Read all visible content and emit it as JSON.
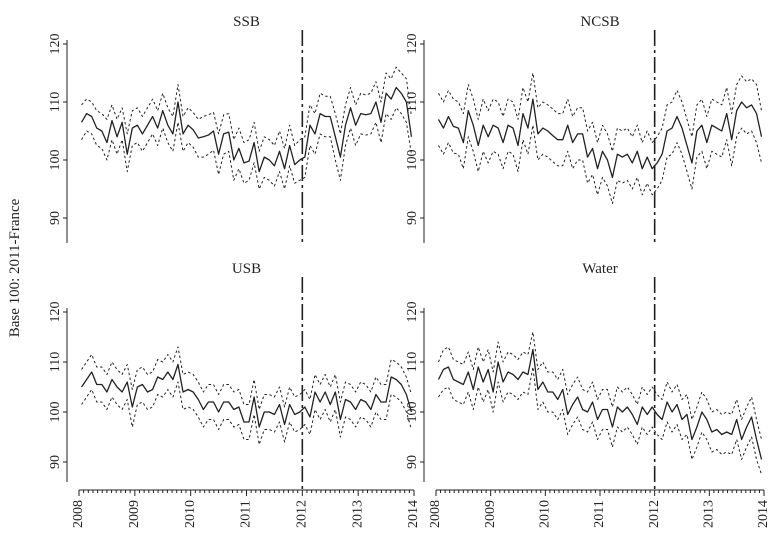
{
  "ylabel": "Base 100: 2011-France",
  "chart_data": [
    {
      "type": "line",
      "title": "SSB",
      "x_ticks": [
        "2008",
        "2009",
        "2010",
        "2011",
        "2012",
        "2013",
        "2014"
      ],
      "y_ticks": [
        90,
        100,
        110,
        120
      ],
      "ylim": [
        84,
        122
      ],
      "xlim": [
        2008,
        2014
      ],
      "vline": 2012,
      "series": [
        {
          "style": "solid",
          "values": [
            106.5,
            108,
            107.5,
            105.5,
            105,
            103,
            106.8,
            104,
            106.5,
            101,
            105.5,
            106,
            104.5,
            106,
            107.5,
            105.5,
            108.5,
            106,
            104.5,
            110,
            104.5,
            106,
            105.2,
            103.8,
            104,
            104.3,
            105,
            101,
            104.5,
            104.8,
            100,
            102,
            99.5,
            99.8,
            103,
            98,
            100.5,
            100,
            99,
            101.5,
            98.5,
            102.5,
            99.2,
            100,
            100.5,
            106,
            104.5,
            108,
            107.5,
            107.5,
            104,
            100.5,
            106,
            109,
            106,
            108,
            107.8,
            108,
            110,
            106.5,
            111.5,
            110.5,
            112.5,
            111.5,
            110,
            104
          ]
        },
        {
          "style": "dash",
          "values": [
            109.5,
            110.5,
            110,
            108.5,
            108,
            107,
            109.5,
            107,
            109,
            104.5,
            108.5,
            109,
            107.5,
            109,
            110.5,
            108.5,
            111.5,
            109,
            107.5,
            113,
            107.5,
            109,
            108.2,
            107,
            107.5,
            107.8,
            108.2,
            104.5,
            107.8,
            108,
            103.5,
            105.5,
            103,
            103.5,
            106.5,
            101.5,
            104,
            103.5,
            102.5,
            105,
            102,
            106,
            102.5,
            103.5,
            104,
            109.5,
            108,
            111.5,
            111,
            111,
            108,
            104.5,
            109.5,
            112.5,
            109.5,
            111.5,
            111.2,
            111.5,
            113.5,
            110,
            115,
            114,
            116,
            115,
            114,
            107.5
          ]
        },
        {
          "style": "dash",
          "values": [
            103.5,
            105,
            104.5,
            102.5,
            102,
            100,
            103.5,
            101,
            103.5,
            98,
            102.5,
            103,
            101.5,
            103,
            104.5,
            102.5,
            105.5,
            103,
            101.5,
            106.5,
            101.5,
            103,
            102.2,
            100.5,
            100.5,
            101,
            101.7,
            97.5,
            101,
            101.5,
            96.5,
            98.5,
            96,
            96.5,
            99.5,
            95,
            97,
            96.5,
            95.5,
            98,
            95,
            99,
            96,
            96.5,
            97,
            102.5,
            101,
            104.5,
            104,
            104,
            100,
            96.5,
            102.5,
            105.5,
            102.5,
            104.5,
            104.3,
            104.5,
            106.5,
            103,
            108,
            107,
            109,
            108,
            106.5,
            101
          ]
        }
      ]
    },
    {
      "type": "line",
      "title": "NCSB",
      "x_ticks": [
        "2008",
        "2009",
        "2010",
        "2011",
        "2012",
        "2013",
        "2014"
      ],
      "y_ticks": [
        90,
        100,
        110,
        120
      ],
      "ylim": [
        84,
        122
      ],
      "xlim": [
        2008,
        2014
      ],
      "vline": 2012,
      "series": [
        {
          "style": "solid",
          "values": [
            107,
            105.5,
            107.5,
            105.8,
            105.5,
            103,
            108.5,
            106,
            102.5,
            106,
            104,
            106,
            105.5,
            103,
            106,
            105.5,
            102.5,
            108,
            105.5,
            110.5,
            104.5,
            105.5,
            105,
            104.2,
            103.5,
            103.5,
            106,
            103,
            104.5,
            104.5,
            100.5,
            102,
            98.5,
            101.5,
            100,
            97,
            101,
            100.5,
            101,
            99.5,
            101.5,
            98.5,
            100.5,
            98.5,
            99.5,
            101,
            105,
            105.5,
            107.5,
            105.5,
            102.5,
            99.5,
            105,
            106,
            103,
            106,
            105.5,
            105,
            108,
            103.5,
            108.5,
            110,
            109,
            109.5,
            108,
            104
          ]
        },
        {
          "style": "dash",
          "values": [
            111.5,
            110,
            112,
            110.5,
            110,
            108,
            113,
            110.5,
            107,
            110.5,
            108.5,
            110.5,
            110,
            107.5,
            110.5,
            110,
            107,
            112.5,
            110,
            115,
            109,
            110,
            109.5,
            108.8,
            108,
            108,
            110.5,
            107.5,
            109,
            109,
            105,
            106.5,
            103,
            106,
            104.5,
            101.5,
            105.5,
            105,
            105.5,
            104,
            106,
            103,
            105,
            103,
            104,
            105.5,
            109.5,
            110,
            112,
            110,
            107,
            104,
            109.5,
            110.5,
            107.5,
            110.5,
            110,
            109.5,
            112.5,
            108,
            113,
            114.5,
            113.5,
            114,
            113,
            108.5
          ]
        },
        {
          "style": "dash",
          "values": [
            102.5,
            101,
            103,
            101.2,
            101,
            98.5,
            104,
            101.5,
            98,
            101.5,
            99.5,
            101.5,
            101,
            98.5,
            101.5,
            101,
            98,
            103.5,
            101,
            106,
            100,
            101,
            100.5,
            99.7,
            99,
            99,
            101.5,
            98.5,
            100,
            100,
            96,
            97.5,
            94,
            97,
            95.5,
            92.5,
            96.5,
            96,
            96.5,
            95,
            97,
            94,
            96,
            94,
            95,
            96.5,
            100.5,
            101,
            103,
            101,
            98,
            95,
            100.5,
            101.5,
            98.5,
            101.5,
            101,
            100.5,
            103.5,
            99,
            104,
            105.5,
            104.5,
            105,
            103,
            99.5
          ]
        }
      ]
    },
    {
      "type": "line",
      "title": "USB",
      "x_ticks": [
        "2008",
        "2009",
        "2010",
        "2011",
        "2012",
        "2013",
        "2014"
      ],
      "y_ticks": [
        90,
        100,
        110,
        120
      ],
      "ylim": [
        86,
        122
      ],
      "xlim": [
        2008,
        2014
      ],
      "vline": 2012,
      "series": [
        {
          "style": "solid",
          "values": [
            105,
            106.5,
            108,
            105.5,
            105.5,
            104,
            106.5,
            105,
            104,
            106,
            101,
            105,
            105.5,
            104,
            104.5,
            107,
            106.5,
            108,
            106.5,
            109.5,
            104,
            104.5,
            104,
            102.5,
            100.5,
            102,
            102,
            100,
            102,
            102,
            100.5,
            101,
            98,
            98,
            103,
            97,
            100,
            100,
            99.5,
            101.5,
            97.5,
            101.5,
            99.5,
            100,
            101,
            99,
            104,
            102,
            104,
            101.5,
            104,
            98.5,
            102.5,
            102,
            100.5,
            102.5,
            102,
            100.5,
            103.5,
            102,
            102,
            107,
            106.5,
            105.5,
            103.5,
            100
          ]
        },
        {
          "style": "dash",
          "values": [
            108.5,
            110,
            111.5,
            109,
            109,
            107.5,
            110,
            108.5,
            107.5,
            109.5,
            104.5,
            108.5,
            109,
            107.5,
            108,
            110.5,
            110,
            111.5,
            110,
            113,
            107.5,
            108,
            107.5,
            106,
            104,
            105.5,
            105.5,
            103.5,
            105.5,
            105.5,
            104,
            104.5,
            101.5,
            101.5,
            106.5,
            100.5,
            103.5,
            103.5,
            103,
            105,
            101,
            105,
            103,
            103.5,
            104.5,
            102.5,
            107.5,
            105.5,
            107.5,
            105,
            107.5,
            102,
            106,
            105.5,
            104,
            106,
            105.5,
            104,
            107,
            105.5,
            105.5,
            110.5,
            110,
            109,
            107,
            103.5
          ]
        },
        {
          "style": "dash",
          "values": [
            101.5,
            103,
            104.5,
            102,
            102,
            100.5,
            103,
            101.5,
            100.5,
            102.5,
            97,
            101.5,
            102,
            100.5,
            101,
            103.5,
            103,
            104.5,
            103,
            106,
            100.5,
            101,
            100.5,
            99,
            97,
            98.5,
            98.5,
            96.5,
            98.5,
            98.5,
            97,
            97.5,
            94.5,
            94.5,
            99.5,
            93.5,
            96.5,
            96.5,
            96,
            98,
            94,
            98,
            96,
            96.5,
            97.5,
            95.5,
            100.5,
            98.5,
            100.5,
            98,
            100.5,
            95,
            99,
            98.5,
            97,
            99,
            98.5,
            97,
            100,
            98.5,
            98.5,
            103.5,
            103,
            102,
            100,
            96.5
          ]
        }
      ]
    },
    {
      "type": "line",
      "title": "Water",
      "x_ticks": [
        "2008",
        "2009",
        "2010",
        "2011",
        "2012",
        "2013",
        "2014"
      ],
      "y_ticks": [
        90,
        100,
        110,
        120
      ],
      "ylim": [
        86,
        122
      ],
      "xlim": [
        2008,
        2014
      ],
      "vline": 2012,
      "series": [
        {
          "style": "solid",
          "values": [
            106.5,
            108.5,
            109,
            106.5,
            106,
            105.5,
            108,
            104.5,
            109,
            106,
            108.5,
            104,
            110,
            106,
            108,
            107.5,
            106.5,
            108,
            107.5,
            112.5,
            104.5,
            106,
            104,
            104,
            102.5,
            104.5,
            99.5,
            101.5,
            103,
            100.5,
            100,
            102,
            98.5,
            100.5,
            100.5,
            97,
            101,
            100,
            101,
            99.5,
            97.5,
            101,
            99.5,
            101,
            99.5,
            98.5,
            102,
            100,
            101.5,
            98.5,
            99.5,
            94.5,
            97,
            100,
            98.5,
            96,
            96.5,
            95.5,
            96,
            95.5,
            98.5,
            94.5,
            97,
            99,
            94.5,
            90.5
          ]
        },
        {
          "style": "dash",
          "values": [
            110,
            112.5,
            113,
            110.5,
            110,
            109.5,
            112,
            108.5,
            113,
            110,
            112.5,
            108,
            114,
            110,
            112,
            111.5,
            110.5,
            112,
            111.5,
            116,
            108.5,
            110,
            108,
            108,
            106.5,
            108.5,
            103.5,
            105.5,
            107,
            104.5,
            104,
            106,
            102.5,
            104.5,
            104.5,
            101,
            105,
            104,
            105,
            103.5,
            101.5,
            105,
            103.5,
            105,
            103.5,
            102.5,
            106,
            104,
            105.5,
            102.5,
            103.5,
            98.5,
            101,
            104,
            102.5,
            100,
            100.5,
            99.5,
            100,
            99.5,
            102.5,
            98.5,
            101,
            103,
            98.5,
            94.5
          ]
        },
        {
          "style": "dash",
          "values": [
            103,
            104.5,
            105,
            102.5,
            102,
            101.5,
            104,
            100.5,
            105,
            102,
            104.5,
            100,
            106,
            102,
            104,
            103.5,
            102.5,
            104,
            103.5,
            109,
            100.5,
            102,
            100,
            100,
            98.5,
            100.5,
            95.5,
            97.5,
            99,
            96.5,
            96,
            98,
            94.5,
            96.5,
            96.5,
            93,
            97,
            96,
            97,
            95.5,
            93.5,
            97,
            95.5,
            97,
            95.5,
            94.5,
            98,
            96,
            97.5,
            94.5,
            95.5,
            90.5,
            93,
            96,
            94.5,
            92,
            92.5,
            91.5,
            92,
            91.5,
            94.5,
            90.5,
            93,
            95,
            90.5,
            87.5
          ]
        }
      ]
    }
  ]
}
